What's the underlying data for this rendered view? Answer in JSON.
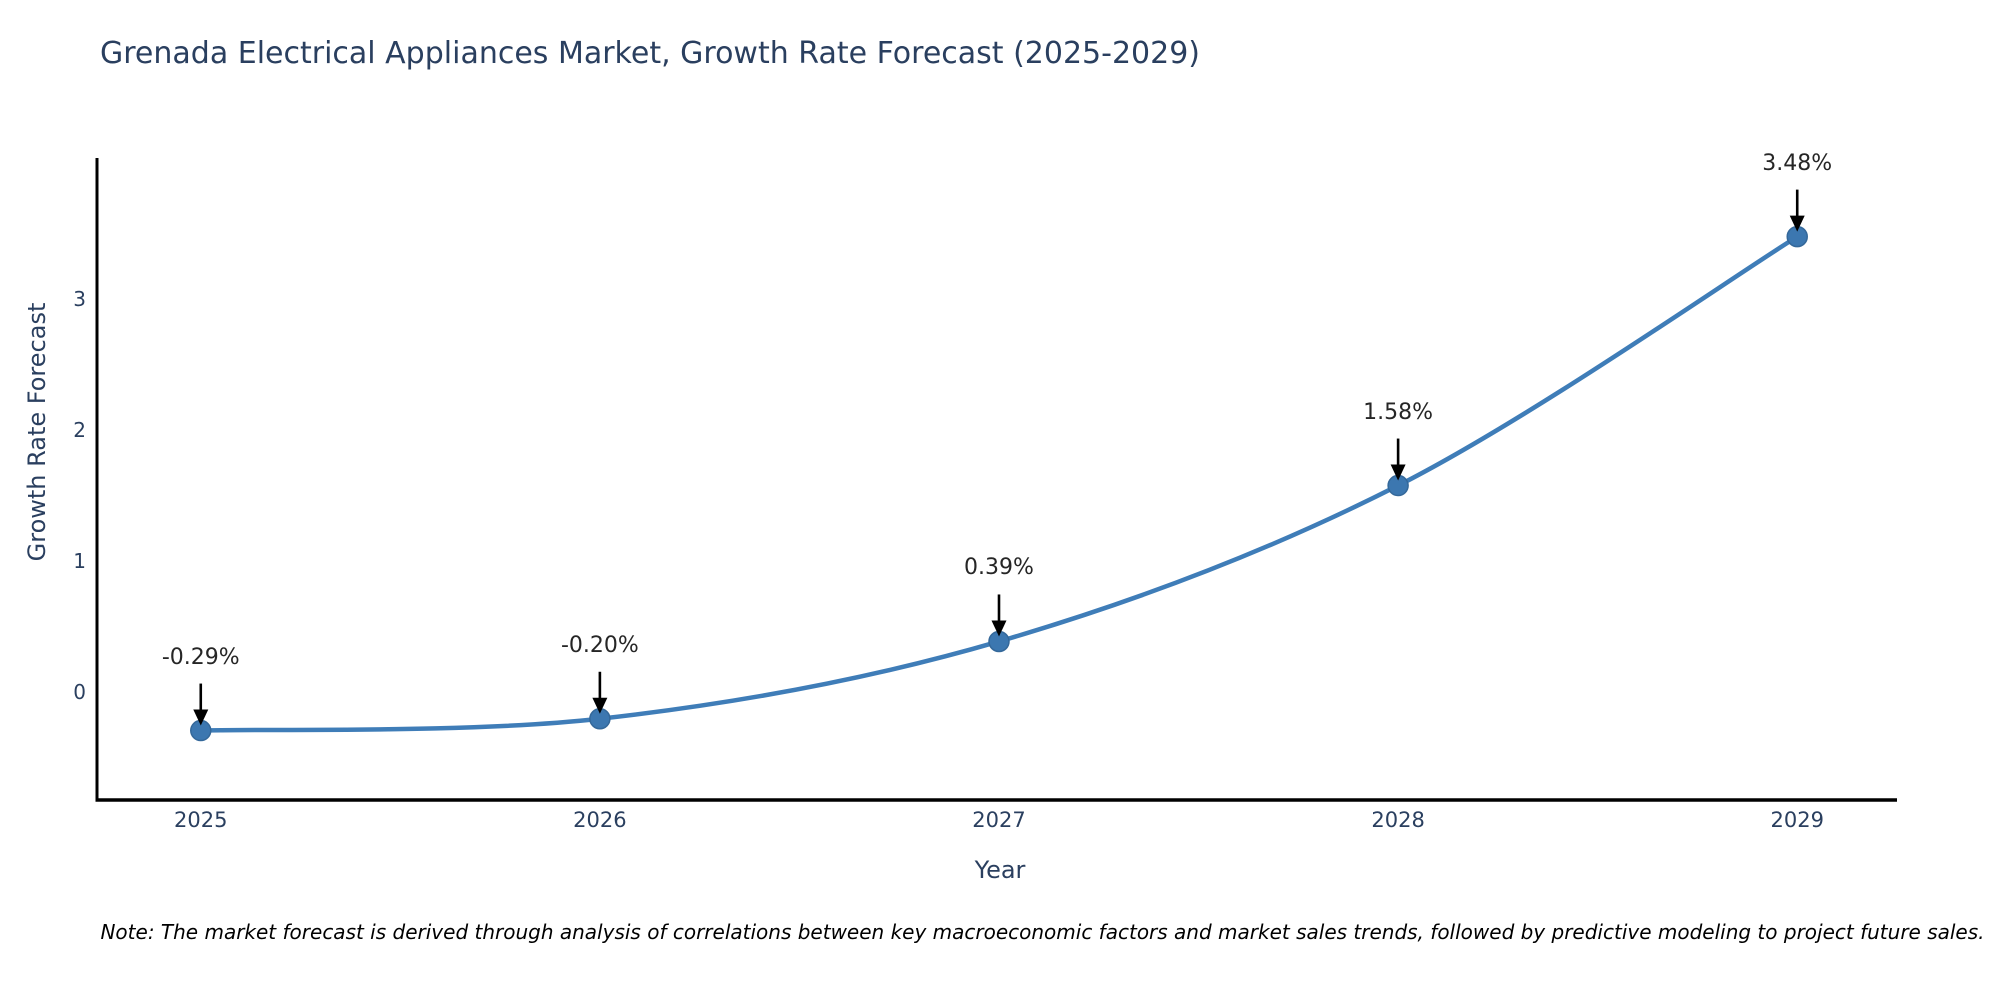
{
  "title": "Grenada Electrical Appliances Market, Growth Rate Forecast (2025-2029)",
  "note": "Note: The market forecast is derived through analysis of correlations between key macroeconomic factors and market sales trends, followed by predictive modeling to project future sales.",
  "chart_data": {
    "type": "line",
    "title": "Grenada Electrical Appliances Market, Growth Rate Forecast (2025-2029)",
    "xlabel": "Year",
    "ylabel": "Growth Rate Forecast",
    "x": [
      2025,
      2026,
      2027,
      2028,
      2029
    ],
    "y": [
      -0.29,
      -0.2,
      0.39,
      1.58,
      3.48
    ],
    "point_labels": [
      "-0.29%",
      "-0.20%",
      "0.39%",
      "1.58%",
      "3.48%"
    ],
    "x_ticks": [
      "2025",
      "2026",
      "2027",
      "2028",
      "2029"
    ],
    "y_ticks": [
      0,
      1,
      2,
      3
    ],
    "xlim": [
      2024.74,
      2029.25
    ],
    "ylim": [
      -0.82,
      4.08
    ],
    "grid": false,
    "legend": "none",
    "smooth": true,
    "line_color": "#3f7db8",
    "marker_color": "#3c77b0",
    "marker_edge_color": "#34689a",
    "axis_color": "#000000",
    "label_color": "#2a3f5f",
    "annotation_text_color": "#262626",
    "annotation_arrow_color": "#000000"
  }
}
